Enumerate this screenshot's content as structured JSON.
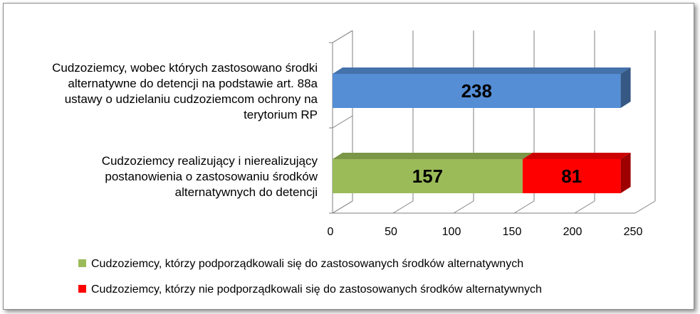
{
  "chart_data": {
    "type": "bar",
    "orientation": "horizontal",
    "stacked": true,
    "three_d": true,
    "categories": [
      "Cudzoziemcy, wobec których zastosowano środki alternatywne do detencji na podstawie art. 88a ustawy o udzielaniu cudzoziemcom ochrony na terytorium RP",
      "Cudzoziemcy realizujący i nierealizujący postanowienia o zastosowaniu środków alternatywnych do detencji"
    ],
    "category_lines": [
      [
        "Cudzoziemcy, wobec których zastosowano środki",
        "alternatywne do detencji na podstawie art. 88a",
        "ustawy o udzielaniu cudzoziemcom ochrony na",
        "terytorium RP"
      ],
      [
        "Cudzoziemcy realizujący i nierealizujący",
        "postanowienia o zastosowaniu środków",
        "alternatywnych do detencji"
      ]
    ],
    "bars": [
      {
        "segments": [
          {
            "value": 238,
            "label": "238",
            "color": "#558ED5"
          }
        ]
      },
      {
        "segments": [
          {
            "value": 157,
            "label": "157",
            "color": "#9BBB59",
            "series": 0
          },
          {
            "value": 81,
            "label": "81",
            "color": "#FF0000",
            "series": 1
          }
        ]
      }
    ],
    "series": [
      {
        "name": "Cudzoziemcy, którzy podporządkowali się do zastosowanych środków alternatywnych",
        "color": "#9BBB59"
      },
      {
        "name": "Cudzoziemcy, którzy nie podporządkowali się do zastosowanych środków alternatywnych",
        "color": "#FF0000"
      }
    ],
    "xlim": [
      0,
      250
    ],
    "xticks": [
      "0",
      "50",
      "100",
      "150",
      "200",
      "250"
    ],
    "grid": true,
    "legend_position": "bottom"
  }
}
